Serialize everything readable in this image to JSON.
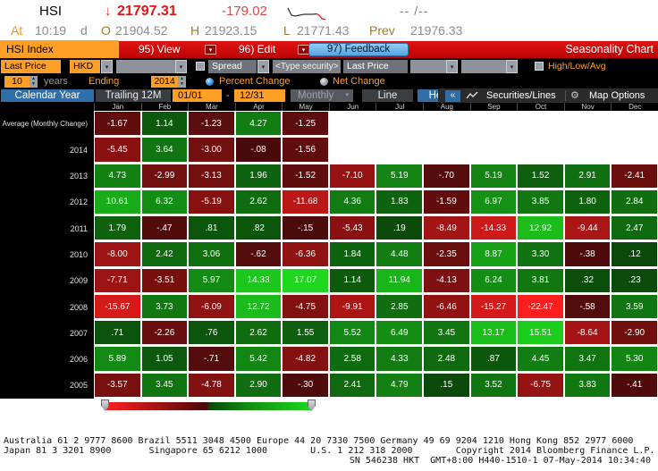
{
  "quote": {
    "ticker": "HSI",
    "arrow": "↓",
    "last": "21797.31",
    "change": "-179.02",
    "range_placeholder": "-- /--",
    "at_label": "At",
    "time": "10:19",
    "session": "d",
    "open_label": "O",
    "open": "21904.52",
    "high_label": "H",
    "high": "21923.15",
    "low_label": "L",
    "low": "21771.43",
    "prev_label": "Prev",
    "prev": "21976.33"
  },
  "menubar": {
    "security_tab": "HSI Index",
    "view": "95) View",
    "edit": "96) Edit",
    "feedback": "97) Feedback",
    "title": "Seasonality Chart"
  },
  "controls": {
    "row1": {
      "field1": "Last Price",
      "currency": "HKD",
      "spread_label": "Spread",
      "type_security_placeholder": "<Type security>",
      "field2": "Last Price",
      "high_low_avg": "High/Low/Avg"
    },
    "row2": {
      "years_value": "10",
      "years_label": "years",
      "ending_label": "Ending",
      "ending_value": "2014",
      "percent_change": "Percent Change",
      "net_change": "Net Change"
    },
    "row3": {
      "calendar_year": "Calendar Year",
      "trailing_12m": "Trailing 12M",
      "date_from": "01/01",
      "date_sep": "-",
      "date_to": "12/31",
      "period": "Monthly",
      "line": "Line",
      "heat_map": "Heat Map",
      "securities_lines": "Securities/Lines",
      "map_options": "Map Options"
    }
  },
  "chart_data": {
    "type": "heatmap",
    "title": "Seasonality Chart",
    "units": "Percent Change",
    "columns": [
      "Jan",
      "Feb",
      "Mar",
      "Apr",
      "May",
      "Jun",
      "Jul",
      "Aug",
      "Sep",
      "Oct",
      "Nov",
      "Dec"
    ],
    "rows": [
      {
        "label": "Average (Monthly Change)",
        "values": [
          "-1.67",
          "1.14",
          "-1.23",
          "4.27",
          "-1.25",
          null,
          null,
          null,
          null,
          null,
          null,
          null
        ]
      },
      {
        "label": "2014",
        "values": [
          "-5.45",
          "3.64",
          "-3.00",
          "-.08",
          "-1.56",
          null,
          null,
          null,
          null,
          null,
          null,
          null
        ]
      },
      {
        "label": "2013",
        "values": [
          "4.73",
          "-2.99",
          "-3.13",
          "1.96",
          "-1.52",
          "-7.10",
          "5.19",
          "-.70",
          "5.19",
          "1.52",
          "2.91",
          "-2.41"
        ]
      },
      {
        "label": "2012",
        "values": [
          "10.61",
          "6.32",
          "-5.19",
          "2.62",
          "-11.68",
          "4.36",
          "1.83",
          "-1.59",
          "6.97",
          "3.85",
          "1.80",
          "2.84"
        ]
      },
      {
        "label": "2011",
        "values": [
          "1.79",
          "-.47",
          ".81",
          ".82",
          "-.15",
          "-5.43",
          ".19",
          "-8.49",
          "-14.33",
          "12.92",
          "-9.44",
          "2.47"
        ]
      },
      {
        "label": "2010",
        "values": [
          "-8.00",
          "2.42",
          "3.06",
          "-.62",
          "-6.36",
          "1.84",
          "4.48",
          "-2.35",
          "8.87",
          "3.30",
          "-.38",
          ".12"
        ]
      },
      {
        "label": "2009",
        "values": [
          "-7.71",
          "-3.51",
          "5.97",
          "14.33",
          "17.07",
          "1.14",
          "11.94",
          "-4.13",
          "6.24",
          "3.81",
          ".32",
          ".23"
        ]
      },
      {
        "label": "2008",
        "values": [
          "-15.67",
          "3.73",
          "-6.09",
          "12.72",
          "-4.75",
          "-9.91",
          "2.85",
          "-6.46",
          "-15.27",
          "-22.47",
          "-.58",
          "3.59"
        ]
      },
      {
        "label": "2007",
        "values": [
          ".71",
          "-2.26",
          ".76",
          "2.62",
          "1.55",
          "5.52",
          "6.49",
          "3.45",
          "13.17",
          "15.51",
          "-8.64",
          "-2.90"
        ]
      },
      {
        "label": "2006",
        "values": [
          "5.89",
          "1.05",
          "-.71",
          "5.42",
          "-4.82",
          "2.58",
          "4.33",
          "2.48",
          ".87",
          "4.45",
          "3.47",
          "5.30"
        ]
      },
      {
        "label": "2005",
        "values": [
          "-3.57",
          "3.45",
          "-4.78",
          "2.90",
          "-.30",
          "2.41",
          "4.79",
          ".15",
          "3.52",
          "-6.75",
          "3.83",
          "-.41"
        ]
      }
    ],
    "color_scale": {
      "abs_max": 22.5,
      "negative_bright": "#ff1c1c",
      "negative_dark": "#440a0a",
      "positive_dark": "#0a440a",
      "positive_bright": "#1ed61e",
      "legend": "red = negative, green = positive"
    }
  },
  "footer": {
    "line1": "Australia 61 2 9777 8600 Brazil 5511 3048 4500 Europe 44 20 7330 7500 Germany 49 69 9204 1210 Hong Kong 852 2977 6000",
    "line2": "Japan 81 3 3201 8900       Singapore 65 6212 1000        U.S. 1 212 318 2000        Copyright 2014 Bloomberg Finance L.P.",
    "line3": "SN 546238 HKT  GMT+8:00 H440-1510-1 07-May-2014 10:34:40"
  }
}
